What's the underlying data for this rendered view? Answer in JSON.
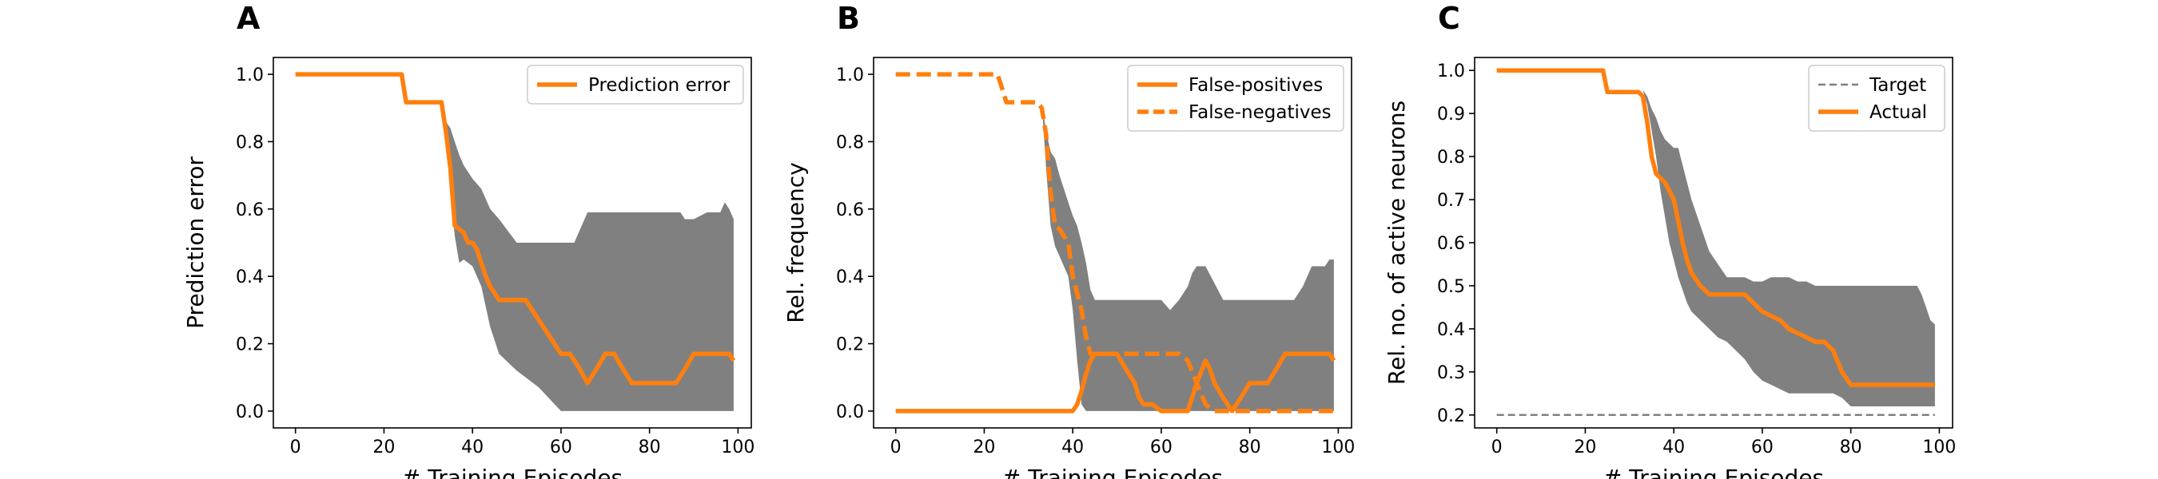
{
  "chart_data": [
    {
      "type": "line",
      "panel_label": "A",
      "xlabel": "# Training Episodes",
      "ylabel": "Prediction error",
      "xlim": [
        -5,
        103
      ],
      "ylim": [
        -0.05,
        1.05
      ],
      "xticks": [
        0,
        20,
        40,
        60,
        80,
        100
      ],
      "yticks": [
        0.0,
        0.2,
        0.4,
        0.6,
        0.8,
        1.0
      ],
      "ytick_labels": [
        "0.0",
        "0.2",
        "0.4",
        "0.6",
        "0.8",
        "1.0"
      ],
      "legend_position": "upper right",
      "grid": false,
      "band": {
        "color": "#808080",
        "x": [
          0,
          24,
          25,
          33,
          34,
          35,
          36,
          37,
          38,
          40,
          42,
          44,
          46,
          50,
          55,
          60,
          63,
          66,
          70,
          75,
          80,
          85,
          87,
          88,
          90,
          93,
          95,
          96,
          97,
          98,
          99
        ],
        "upper": [
          1.0,
          1.0,
          0.917,
          0.917,
          0.86,
          0.84,
          0.8,
          0.76,
          0.73,
          0.69,
          0.66,
          0.6,
          0.57,
          0.5,
          0.5,
          0.5,
          0.5,
          0.59,
          0.59,
          0.59,
          0.59,
          0.59,
          0.59,
          0.57,
          0.57,
          0.59,
          0.59,
          0.59,
          0.62,
          0.6,
          0.57
        ],
        "lower": [
          1.0,
          1.0,
          0.917,
          0.917,
          0.8,
          0.66,
          0.52,
          0.44,
          0.45,
          0.43,
          0.37,
          0.25,
          0.17,
          0.12,
          0.07,
          0.0,
          0.0,
          0.0,
          0.0,
          0.0,
          0.0,
          0.0,
          0.0,
          0.0,
          0.0,
          0.0,
          0.0,
          0.0,
          0.0,
          0.0,
          0.0
        ]
      },
      "series": [
        {
          "name": "Prediction error",
          "style": "solid",
          "color": "#ff7f0e",
          "x": [
            0,
            24,
            25,
            33,
            34,
            35,
            36,
            37,
            38,
            39,
            40,
            41,
            42,
            43,
            44,
            45,
            46,
            47,
            48,
            50,
            52,
            54,
            55,
            56,
            58,
            60,
            62,
            64,
            66,
            68,
            70,
            72,
            74,
            76,
            78,
            80,
            84,
            86,
            88,
            90,
            92,
            94,
            96,
            98,
            99
          ],
          "y": [
            1.0,
            1.0,
            0.917,
            0.917,
            0.83,
            0.72,
            0.55,
            0.54,
            0.53,
            0.5,
            0.5,
            0.48,
            0.44,
            0.4,
            0.37,
            0.35,
            0.33,
            0.33,
            0.33,
            0.33,
            0.33,
            0.29,
            0.27,
            0.25,
            0.21,
            0.17,
            0.17,
            0.13,
            0.083,
            0.125,
            0.17,
            0.17,
            0.125,
            0.083,
            0.083,
            0.083,
            0.083,
            0.083,
            0.125,
            0.17,
            0.17,
            0.17,
            0.17,
            0.17,
            0.15
          ]
        }
      ]
    },
    {
      "type": "line",
      "panel_label": "B",
      "xlabel": "# Training Episodes",
      "ylabel": "Rel. frequency",
      "xlim": [
        -5,
        103
      ],
      "ylim": [
        -0.05,
        1.05
      ],
      "xticks": [
        0,
        20,
        40,
        60,
        80,
        100
      ],
      "yticks": [
        0.0,
        0.2,
        0.4,
        0.6,
        0.8,
        1.0
      ],
      "ytick_labels": [
        "0.0",
        "0.2",
        "0.4",
        "0.6",
        "0.8",
        "1.0"
      ],
      "legend_position": "upper right",
      "grid": false,
      "band": {
        "color": "#808080",
        "x": [
          0,
          24,
          25,
          33,
          34,
          35,
          36,
          37,
          38,
          39,
          40,
          41,
          42,
          43,
          44,
          45,
          46,
          48,
          50,
          55,
          60,
          62,
          64,
          66,
          67,
          68,
          70,
          72,
          74,
          76,
          78,
          80,
          85,
          90,
          92,
          94,
          96,
          97,
          98,
          99
        ],
        "upper": [
          1.0,
          1.0,
          0.917,
          0.917,
          0.83,
          0.77,
          0.75,
          0.7,
          0.66,
          0.62,
          0.58,
          0.55,
          0.5,
          0.44,
          0.36,
          0.33,
          0.33,
          0.33,
          0.33,
          0.33,
          0.33,
          0.3,
          0.33,
          0.37,
          0.41,
          0.43,
          0.43,
          0.38,
          0.33,
          0.33,
          0.33,
          0.33,
          0.33,
          0.33,
          0.37,
          0.43,
          0.43,
          0.43,
          0.45,
          0.45
        ],
        "lower": [
          1.0,
          1.0,
          0.917,
          0.917,
          0.72,
          0.55,
          0.49,
          0.46,
          0.43,
          0.4,
          0.3,
          0.15,
          0.02,
          0.0,
          0.0,
          0.0,
          0.0,
          0.0,
          0.0,
          0.0,
          0.0,
          0.0,
          0.0,
          0.0,
          0.0,
          0.0,
          0.0,
          0.0,
          0.0,
          0.0,
          0.0,
          0.0,
          0.0,
          0.0,
          0.0,
          0.0,
          0.0,
          0.0,
          0.0,
          0.0
        ]
      },
      "series": [
        {
          "name": "False-positives",
          "style": "solid",
          "color": "#ff7f0e",
          "x": [
            0,
            40,
            41,
            42,
            43,
            44,
            45,
            46,
            50,
            52,
            54,
            55,
            56,
            58,
            60,
            62,
            64,
            66,
            68,
            70,
            71,
            72,
            74,
            76,
            78,
            80,
            82,
            84,
            86,
            88,
            90,
            92,
            94,
            96,
            98,
            99
          ],
          "y": [
            0.0,
            0.0,
            0.02,
            0.06,
            0.11,
            0.15,
            0.17,
            0.17,
            0.17,
            0.125,
            0.083,
            0.04,
            0.02,
            0.02,
            0.0,
            0.0,
            0.0,
            0.0,
            0.083,
            0.15,
            0.125,
            0.083,
            0.04,
            0.0,
            0.04,
            0.083,
            0.083,
            0.083,
            0.125,
            0.17,
            0.17,
            0.17,
            0.17,
            0.17,
            0.17,
            0.15
          ]
        },
        {
          "name": "False-negatives",
          "style": "dashed",
          "color": "#ff7f0e",
          "x": [
            0,
            23,
            24,
            25,
            32,
            33,
            34,
            35,
            36,
            37,
            38,
            39,
            40,
            41,
            42,
            43,
            44,
            45,
            50,
            60,
            62,
            64,
            66,
            68,
            70,
            72,
            74,
            80,
            90,
            95,
            99
          ],
          "y": [
            1.0,
            1.0,
            0.96,
            0.917,
            0.917,
            0.9,
            0.82,
            0.65,
            0.55,
            0.54,
            0.52,
            0.5,
            0.4,
            0.35,
            0.3,
            0.22,
            0.17,
            0.17,
            0.17,
            0.17,
            0.17,
            0.17,
            0.15,
            0.083,
            0.02,
            0.0,
            0.0,
            0.0,
            0.0,
            0.0,
            0.0
          ]
        }
      ]
    },
    {
      "type": "line",
      "panel_label": "C",
      "xlabel": "# Training Episodes",
      "ylabel": "Rel. no. of active neurons",
      "xlim": [
        -5,
        103
      ],
      "ylim": [
        0.17,
        1.03
      ],
      "xticks": [
        0,
        20,
        40,
        60,
        80,
        100
      ],
      "yticks": [
        0.2,
        0.3,
        0.4,
        0.5,
        0.6,
        0.7,
        0.8,
        0.9,
        1.0
      ],
      "ytick_labels": [
        "0.2",
        "0.3",
        "0.4",
        "0.5",
        "0.6",
        "0.7",
        "0.8",
        "0.9",
        "1.0"
      ],
      "legend_position": "upper right",
      "grid": false,
      "band": {
        "color": "#808080",
        "x": [
          0,
          24,
          25,
          33,
          34,
          35,
          36,
          37,
          38,
          39,
          40,
          41,
          42,
          43,
          44,
          46,
          48,
          50,
          52,
          54,
          56,
          58,
          60,
          62,
          64,
          66,
          68,
          70,
          72,
          74,
          76,
          78,
          80,
          85,
          90,
          95,
          96,
          97,
          98,
          99
        ],
        "upper": [
          1.0,
          1.0,
          0.955,
          0.955,
          0.94,
          0.91,
          0.89,
          0.86,
          0.84,
          0.83,
          0.82,
          0.82,
          0.78,
          0.74,
          0.7,
          0.64,
          0.58,
          0.55,
          0.52,
          0.52,
          0.52,
          0.51,
          0.51,
          0.52,
          0.52,
          0.52,
          0.51,
          0.51,
          0.5,
          0.5,
          0.5,
          0.5,
          0.5,
          0.5,
          0.5,
          0.5,
          0.48,
          0.45,
          0.42,
          0.41
        ],
        "lower": [
          1.0,
          1.0,
          0.955,
          0.955,
          0.92,
          0.86,
          0.8,
          0.72,
          0.66,
          0.6,
          0.56,
          0.52,
          0.49,
          0.46,
          0.44,
          0.42,
          0.4,
          0.38,
          0.37,
          0.35,
          0.33,
          0.3,
          0.28,
          0.27,
          0.26,
          0.25,
          0.25,
          0.25,
          0.25,
          0.25,
          0.25,
          0.24,
          0.22,
          0.22,
          0.22,
          0.22,
          0.22,
          0.22,
          0.22,
          0.22
        ]
      },
      "series": [
        {
          "name": "Target",
          "style": "dashed",
          "color": "#808080",
          "x": [
            0,
            99
          ],
          "y": [
            0.2,
            0.2
          ]
        },
        {
          "name": "Actual",
          "style": "solid",
          "color": "#ff7f0e",
          "x": [
            0,
            24,
            25,
            32,
            33,
            34,
            35,
            36,
            38,
            40,
            41,
            42,
            43,
            44,
            46,
            48,
            50,
            52,
            54,
            56,
            58,
            60,
            62,
            64,
            66,
            68,
            70,
            72,
            74,
            76,
            78,
            80,
            85,
            90,
            95,
            99
          ],
          "y": [
            1.0,
            1.0,
            0.95,
            0.95,
            0.94,
            0.88,
            0.8,
            0.76,
            0.74,
            0.7,
            0.65,
            0.6,
            0.56,
            0.53,
            0.5,
            0.48,
            0.48,
            0.48,
            0.48,
            0.48,
            0.46,
            0.44,
            0.43,
            0.42,
            0.4,
            0.39,
            0.38,
            0.37,
            0.37,
            0.35,
            0.3,
            0.27,
            0.27,
            0.27,
            0.27,
            0.27
          ]
        }
      ]
    }
  ]
}
